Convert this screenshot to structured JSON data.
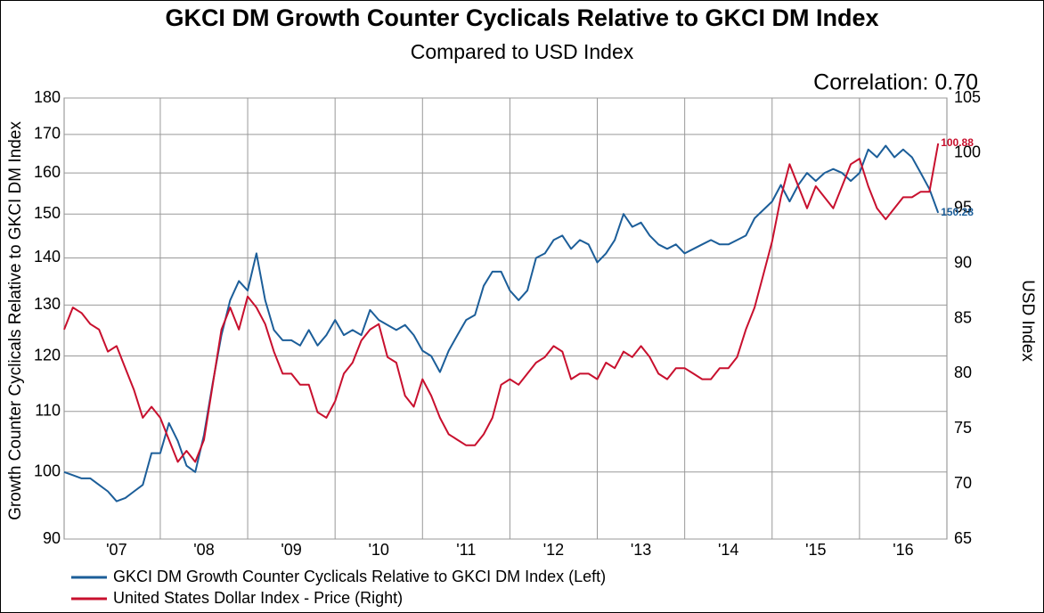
{
  "chart_data": {
    "type": "line",
    "title": "GKCI DM Growth Counter Cyclicals Relative to GKCI DM Index",
    "subtitle": "Compared to USD Index",
    "annotation": "Correlation: 0.70",
    "y_label": "Growth Counter Cyclicals Relative to GKCI DM Index",
    "y2_label": "USD Index",
    "x": [
      2006.9,
      2007,
      2007.1,
      2007.2,
      2007.3,
      2007.4,
      2007.5,
      2007.6,
      2007.7,
      2007.8,
      2007.9,
      2008,
      2008.1,
      2008.2,
      2008.3,
      2008.4,
      2008.5,
      2008.6,
      2008.7,
      2008.8,
      2008.9,
      2009,
      2009.1,
      2009.2,
      2009.3,
      2009.4,
      2009.5,
      2009.6,
      2009.7,
      2009.8,
      2009.9,
      2010,
      2010.1,
      2010.2,
      2010.3,
      2010.4,
      2010.5,
      2010.6,
      2010.7,
      2010.8,
      2010.9,
      2011,
      2011.1,
      2011.2,
      2011.3,
      2011.4,
      2011.5,
      2011.6,
      2011.7,
      2011.8,
      2011.9,
      2012,
      2012.1,
      2012.2,
      2012.3,
      2012.4,
      2012.5,
      2012.6,
      2012.7,
      2012.8,
      2012.9,
      2013,
      2013.1,
      2013.2,
      2013.3,
      2013.4,
      2013.5,
      2013.6,
      2013.7,
      2013.8,
      2013.9,
      2014,
      2014.1,
      2014.2,
      2014.3,
      2014.4,
      2014.5,
      2014.6,
      2014.7,
      2014.8,
      2014.9,
      2015,
      2015.1,
      2015.2,
      2015.3,
      2015.4,
      2015.5,
      2015.6,
      2015.7,
      2015.8,
      2015.9,
      2016,
      2016.1,
      2016.2,
      2016.3,
      2016.4,
      2016.5,
      2016.6,
      2016.7,
      2016.8,
      2016.9
    ],
    "series": [
      {
        "name": "GKCI DM Growth Counter Cyclicals Relative to GKCI DM Index (Left)",
        "color": "#1c5e99",
        "values": [
          100,
          99.5,
          99,
          99,
          98,
          97,
          95.5,
          96,
          97,
          98,
          103,
          103,
          108,
          105,
          101,
          100,
          106,
          115,
          124,
          131,
          135,
          133,
          141,
          131,
          125,
          123,
          123,
          122,
          125,
          122,
          124,
          127,
          124,
          125,
          124,
          129,
          127,
          126,
          125,
          126,
          124,
          121,
          120,
          117,
          121,
          124,
          127,
          128,
          134,
          137,
          137,
          133,
          131,
          133,
          140,
          141,
          144,
          145,
          142,
          144,
          143,
          139,
          141,
          144,
          150,
          147,
          148,
          145,
          143,
          142,
          143,
          141,
          142,
          143,
          144,
          143,
          143,
          144,
          145,
          149,
          151,
          153,
          157,
          153,
          157,
          160,
          158,
          160,
          161,
          160,
          158,
          160,
          166,
          164,
          167,
          164,
          166,
          164,
          160,
          156,
          150.28
        ]
      },
      {
        "name": "United States Dollar Index - Price  (Right)",
        "color": "#c8102e",
        "axis": "y2",
        "values": [
          84,
          86,
          85.5,
          84.5,
          84,
          82,
          82.5,
          80.5,
          78.5,
          76,
          77,
          76,
          74,
          72,
          73,
          72,
          74,
          79,
          84,
          86,
          84,
          87,
          86,
          84.5,
          82,
          80,
          80,
          79,
          79,
          76.5,
          76,
          77.5,
          80,
          81,
          83,
          84,
          84.5,
          81.5,
          81,
          78,
          77,
          79.5,
          78,
          76,
          74.5,
          74,
          73.5,
          73.5,
          74.5,
          76,
          79,
          79.5,
          79,
          80,
          81,
          81.5,
          82.5,
          82,
          79.5,
          80,
          80,
          79.5,
          81,
          80.5,
          82,
          81.5,
          82.5,
          81.5,
          80,
          79.5,
          80.5,
          80.5,
          80,
          79.5,
          79.5,
          80.5,
          80.5,
          81.5,
          84,
          86,
          89,
          92,
          96,
          99,
          97,
          95,
          97,
          96,
          95,
          97,
          99,
          99.5,
          97,
          95,
          94,
          95,
          96,
          96,
          96.5,
          96.5,
          100.88
        ]
      }
    ],
    "xlim": [
      2006.9,
      2017.0
    ],
    "xticks": [
      {
        "value": 2007.5,
        "label": "'07"
      },
      {
        "value": 2008.5,
        "label": "'08"
      },
      {
        "value": 2009.5,
        "label": "'09"
      },
      {
        "value": 2010.5,
        "label": "'10"
      },
      {
        "value": 2011.5,
        "label": "'11"
      },
      {
        "value": 2012.5,
        "label": "'12"
      },
      {
        "value": 2013.5,
        "label": "'13"
      },
      {
        "value": 2014.5,
        "label": "'14"
      },
      {
        "value": 2015.5,
        "label": "'15"
      },
      {
        "value": 2016.5,
        "label": "'16"
      }
    ],
    "xgrid": [
      2008,
      2009,
      2010,
      2011,
      2012,
      2013,
      2014,
      2015,
      2016
    ],
    "ylim": [
      90,
      180
    ],
    "yticks": [
      90,
      100,
      110,
      120,
      130,
      140,
      150,
      160,
      170,
      180
    ],
    "y_log": true,
    "y2lim": [
      65,
      105
    ],
    "y2ticks": [
      65,
      70,
      75,
      80,
      85,
      90,
      95,
      100,
      105
    ],
    "grid": true,
    "legend": "bottom"
  }
}
